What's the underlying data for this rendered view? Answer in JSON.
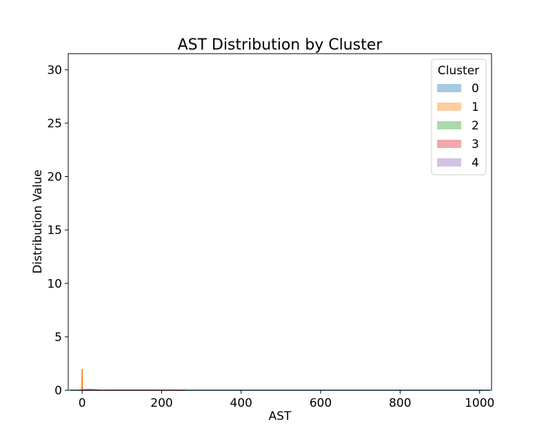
{
  "chart_data": {
    "type": "area",
    "title": "AST Distribution by Cluster",
    "xlabel": "AST",
    "ylabel": "Distribution Value",
    "xlim": [
      -35,
      1030
    ],
    "ylim": [
      0,
      31.5
    ],
    "x_ticks": [
      0,
      200,
      400,
      600,
      800,
      1000
    ],
    "y_ticks": [
      0,
      5,
      10,
      15,
      20,
      25,
      30
    ],
    "grid": false,
    "legend": {
      "title": "Cluster",
      "placement": "top-right"
    },
    "series": [
      {
        "name": "0",
        "color": "#1f77b4",
        "x": [
          -30,
          0,
          100,
          300,
          500,
          700,
          900,
          1025
        ],
        "y": [
          0.001,
          0.003,
          0.004,
          0.005,
          0.005,
          0.005,
          0.004,
          0.002
        ]
      },
      {
        "name": "1",
        "color": "#ff7f0e",
        "x": [
          -2,
          -0.6,
          0,
          0.6,
          2
        ],
        "y": [
          0,
          0.3,
          2.0,
          0.3,
          0
        ]
      },
      {
        "name": "2",
        "color": "#2ca02c",
        "x": [
          -10,
          0,
          10,
          20,
          30,
          45
        ],
        "y": [
          0,
          0.02,
          0.06,
          0.05,
          0.02,
          0
        ]
      },
      {
        "name": "3",
        "color": "#d62728",
        "x": [
          0,
          50,
          120,
          200,
          240,
          260
        ],
        "y": [
          0,
          0.01,
          0.015,
          0.015,
          0.01,
          0
        ]
      },
      {
        "name": "4",
        "color": "#9467bd",
        "x": [
          -5,
          5,
          15,
          25,
          40,
          60
        ],
        "y": [
          0,
          0.03,
          0.08,
          0.07,
          0.03,
          0
        ]
      }
    ]
  }
}
